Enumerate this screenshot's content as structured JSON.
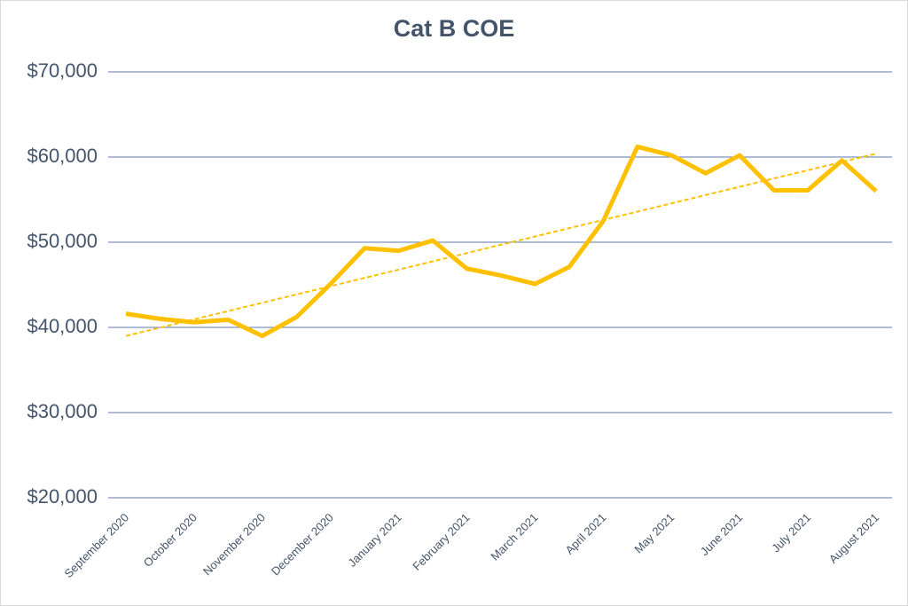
{
  "chart_data": {
    "type": "line",
    "title": "Cat B COE",
    "categories": [
      "September 2020",
      null,
      "October 2020",
      null,
      "November 2020",
      null,
      "December 2020",
      null,
      "January 2021",
      null,
      "February 2021",
      null,
      "March 2021",
      null,
      "April 2021",
      null,
      "May 2021",
      null,
      "June 2021",
      null,
      "July 2021",
      null,
      "August 2021"
    ],
    "series": [
      {
        "color": "#ffc000",
        "values": [
          41600,
          41000,
          40600,
          40900,
          39000,
          41200,
          45100,
          49300,
          49000,
          50200,
          46900,
          46100,
          45100,
          47100,
          52500,
          61200,
          60200,
          58100,
          60200,
          56100,
          56100,
          59600,
          56000
        ]
      }
    ],
    "trendline": {
      "color": "#ffc000",
      "dashed": true,
      "values": [
        39000,
        60400
      ]
    },
    "ylim": [
      20000,
      70000
    ],
    "yticks": [
      {
        "value": 20000,
        "label": "$20,000"
      },
      {
        "value": 30000,
        "label": "$30,000"
      },
      {
        "value": 40000,
        "label": "$40,000"
      },
      {
        "value": 50000,
        "label": "$50,000"
      },
      {
        "value": 60000,
        "label": "$60,000"
      },
      {
        "value": 70000,
        "label": "$70,000"
      }
    ],
    "grid": true
  }
}
